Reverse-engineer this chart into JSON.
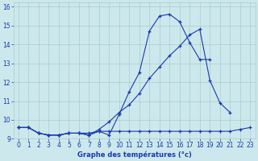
{
  "title": "Graphe des températures (°c)",
  "hours": [
    0,
    1,
    2,
    3,
    4,
    5,
    6,
    7,
    8,
    9,
    10,
    11,
    12,
    13,
    14,
    15,
    16,
    17,
    18,
    19,
    20,
    21,
    22,
    23
  ],
  "line1": [
    9.6,
    9.6,
    9.3,
    9.2,
    9.2,
    9.3,
    9.3,
    9.2,
    9.4,
    9.2,
    10.3,
    11.5,
    12.5,
    14.7,
    15.5,
    15.6,
    15.2,
    14.1,
    13.2,
    13.2,
    null,
    null,
    null,
    null
  ],
  "line2": [
    9.6,
    9.6,
    9.3,
    9.2,
    9.2,
    9.3,
    9.3,
    9.2,
    9.5,
    9.9,
    10.4,
    10.8,
    11.4,
    12.2,
    12.8,
    13.4,
    13.9,
    14.5,
    14.8,
    12.1,
    10.9,
    10.4,
    null,
    null
  ],
  "line3": [
    9.6,
    9.6,
    9.3,
    9.2,
    9.2,
    9.3,
    9.3,
    9.3,
    9.4,
    9.4,
    9.4,
    9.4,
    9.4,
    9.4,
    9.4,
    9.4,
    9.4,
    9.4,
    9.4,
    9.4,
    9.4,
    9.4,
    9.5,
    9.6
  ],
  "bg_color": "#cce8ec",
  "grid_color": "#aacccc",
  "line_color": "#1a3aab",
  "ylim": [
    9.0,
    16.2
  ],
  "xlim": [
    -0.5,
    23.5
  ],
  "yticks": [
    9,
    10,
    11,
    12,
    13,
    14,
    15,
    16
  ],
  "xticks": [
    0,
    1,
    2,
    3,
    4,
    5,
    6,
    7,
    8,
    9,
    10,
    11,
    12,
    13,
    14,
    15,
    16,
    17,
    18,
    19,
    20,
    21,
    22,
    23
  ]
}
